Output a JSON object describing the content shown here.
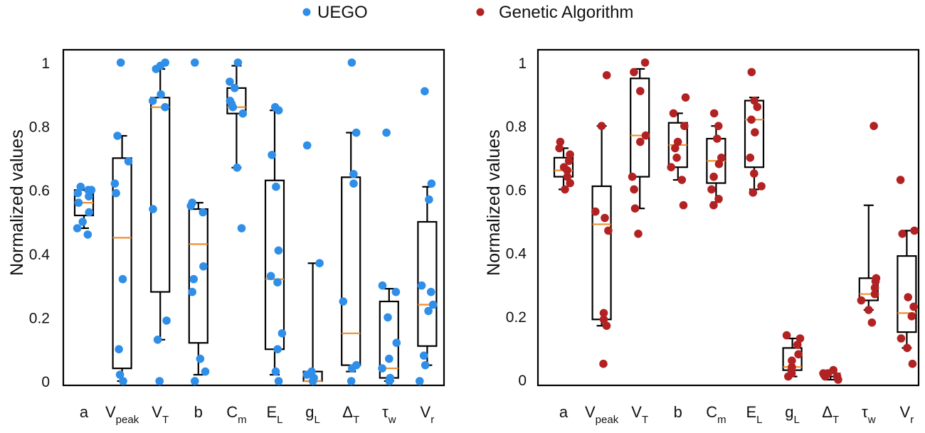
{
  "legend": [
    {
      "label": "UEGO",
      "color": "#2e8ee8"
    },
    {
      "label": "Genetic Algorithm",
      "color": "#b22222"
    }
  ],
  "chart_data": [
    {
      "type": "box",
      "series_name": "UEGO",
      "point_color": "#2e8ee8",
      "median_color": "#f28e2b",
      "ylabel": "Normalized values",
      "ylim": [
        0,
        1
      ],
      "yticks": [
        {
          "v": 0,
          "label": "0"
        },
        {
          "v": 0.2,
          "label": "0.2"
        },
        {
          "v": 0.4,
          "label": "0.4"
        },
        {
          "v": 0.6,
          "label": "0.6"
        },
        {
          "v": 0.8,
          "label": "0.8"
        },
        {
          "v": 1,
          "label": "1"
        }
      ],
      "categories": [
        {
          "main": "a",
          "sub": ""
        },
        {
          "main": "V",
          "sub": "peak"
        },
        {
          "main": "V",
          "sub": "T"
        },
        {
          "main": "b",
          "sub": ""
        },
        {
          "main": "C",
          "sub": "m"
        },
        {
          "main": "E",
          "sub": "L"
        },
        {
          "main": "g",
          "sub": "L"
        },
        {
          "main": "Δ",
          "sub": "T"
        },
        {
          "main": "τ",
          "sub": "w"
        },
        {
          "main": "V",
          "sub": "r"
        }
      ],
      "boxes": [
        {
          "q1": 0.52,
          "median": 0.56,
          "q3": 0.6,
          "wlo": 0.48,
          "whi": 0.6,
          "points": [
            0.46,
            0.48,
            0.5,
            0.53,
            0.56,
            0.58,
            0.59,
            0.6,
            0.61,
            0.6
          ]
        },
        {
          "q1": 0.04,
          "median": 0.45,
          "q3": 0.7,
          "wlo": 0.0,
          "whi": 0.77,
          "points": [
            0.0,
            0.02,
            0.1,
            0.32,
            0.59,
            0.62,
            0.69,
            0.77,
            1.0
          ]
        },
        {
          "q1": 0.28,
          "median": 0.86,
          "q3": 0.89,
          "wlo": 0.13,
          "whi": 0.98,
          "points": [
            0.0,
            0.13,
            0.19,
            0.54,
            0.86,
            0.88,
            0.9,
            0.98,
            0.99,
            1.0
          ]
        },
        {
          "q1": 0.12,
          "median": 0.43,
          "q3": 0.54,
          "wlo": 0.02,
          "whi": 0.56,
          "points": [
            0.0,
            0.03,
            0.07,
            0.28,
            0.32,
            0.36,
            0.53,
            0.55,
            0.56,
            1.0
          ]
        },
        {
          "q1": 0.84,
          "median": 0.86,
          "q3": 0.92,
          "wlo": 0.67,
          "whi": 0.99,
          "points": [
            0.48,
            0.67,
            0.84,
            0.86,
            0.87,
            0.88,
            0.92,
            0.94,
            1.0
          ]
        },
        {
          "q1": 0.1,
          "median": 0.32,
          "q3": 0.63,
          "wlo": 0.02,
          "whi": 0.85,
          "points": [
            0.0,
            0.03,
            0.1,
            0.15,
            0.31,
            0.33,
            0.41,
            0.61,
            0.71,
            0.85,
            0.86
          ]
        },
        {
          "q1": 0.0,
          "median": 0.0,
          "q3": 0.03,
          "wlo": 0.0,
          "whi": 0.37,
          "points": [
            0.0,
            0.01,
            0.02,
            0.03,
            0.37,
            0.74
          ]
        },
        {
          "q1": 0.05,
          "median": 0.15,
          "q3": 0.64,
          "wlo": 0.03,
          "whi": 0.78,
          "points": [
            0.0,
            0.04,
            0.05,
            0.25,
            0.62,
            0.65,
            0.78,
            1.0
          ]
        },
        {
          "q1": 0.01,
          "median": 0.04,
          "q3": 0.25,
          "wlo": 0.0,
          "whi": 0.29,
          "points": [
            0.0,
            0.01,
            0.04,
            0.07,
            0.12,
            0.2,
            0.28,
            0.3,
            0.78
          ]
        },
        {
          "q1": 0.11,
          "median": 0.24,
          "q3": 0.5,
          "wlo": 0.05,
          "whi": 0.61,
          "points": [
            0.0,
            0.05,
            0.08,
            0.22,
            0.24,
            0.28,
            0.3,
            0.57,
            0.62,
            0.91
          ]
        }
      ]
    },
    {
      "type": "box",
      "series_name": "Genetic Algorithm",
      "point_color": "#b22222",
      "median_color": "#f28e2b",
      "ylabel": "Normalized values",
      "ylim": [
        0,
        1
      ],
      "yticks": [
        {
          "v": 0,
          "label": "0"
        },
        {
          "v": 0.2,
          "label": "0.2"
        },
        {
          "v": 0.4,
          "label": "0.4"
        },
        {
          "v": 0.6,
          "label": "0.6"
        },
        {
          "v": 0.8,
          "label": "0.8"
        },
        {
          "v": 1,
          "label": "1"
        }
      ],
      "categories": [
        {
          "main": "a",
          "sub": ""
        },
        {
          "main": "V",
          "sub": "peak"
        },
        {
          "main": "V",
          "sub": "T"
        },
        {
          "main": "b",
          "sub": ""
        },
        {
          "main": "C",
          "sub": "m"
        },
        {
          "main": "E",
          "sub": "L"
        },
        {
          "main": "g",
          "sub": "L"
        },
        {
          "main": "Δ",
          "sub": "T"
        },
        {
          "main": "τ",
          "sub": "w"
        },
        {
          "main": "V",
          "sub": "r"
        }
      ],
      "boxes": [
        {
          "q1": 0.64,
          "median": 0.66,
          "q3": 0.7,
          "wlo": 0.6,
          "whi": 0.73,
          "points": [
            0.6,
            0.62,
            0.64,
            0.66,
            0.67,
            0.69,
            0.71,
            0.73,
            0.75
          ]
        },
        {
          "q1": 0.19,
          "median": 0.49,
          "q3": 0.61,
          "wlo": 0.17,
          "whi": 0.8,
          "points": [
            0.05,
            0.17,
            0.19,
            0.21,
            0.47,
            0.51,
            0.53,
            0.8,
            0.96
          ]
        },
        {
          "q1": 0.64,
          "median": 0.77,
          "q3": 0.95,
          "wlo": 0.54,
          "whi": 0.98,
          "points": [
            0.46,
            0.54,
            0.6,
            0.64,
            0.75,
            0.77,
            0.91,
            0.97,
            1.0
          ]
        },
        {
          "q1": 0.67,
          "median": 0.74,
          "q3": 0.81,
          "wlo": 0.63,
          "whi": 0.84,
          "points": [
            0.55,
            0.63,
            0.67,
            0.7,
            0.73,
            0.75,
            0.8,
            0.84,
            0.89
          ]
        },
        {
          "q1": 0.62,
          "median": 0.69,
          "q3": 0.76,
          "wlo": 0.56,
          "whi": 0.8,
          "points": [
            0.55,
            0.57,
            0.6,
            0.64,
            0.68,
            0.7,
            0.76,
            0.8,
            0.84
          ]
        },
        {
          "q1": 0.67,
          "median": 0.82,
          "q3": 0.88,
          "wlo": 0.6,
          "whi": 0.89,
          "points": [
            0.59,
            0.61,
            0.65,
            0.7,
            0.78,
            0.82,
            0.86,
            0.88,
            0.97
          ]
        },
        {
          "q1": 0.03,
          "median": 0.04,
          "q3": 0.1,
          "wlo": 0.01,
          "whi": 0.13,
          "points": [
            0.01,
            0.02,
            0.03,
            0.04,
            0.06,
            0.08,
            0.11,
            0.13,
            0.14
          ]
        },
        {
          "q1": 0.01,
          "median": 0.02,
          "q3": 0.02,
          "wlo": 0.0,
          "whi": 0.02,
          "points": [
            0.0,
            0.01,
            0.01,
            0.02,
            0.02,
            0.03
          ]
        },
        {
          "q1": 0.25,
          "median": 0.27,
          "q3": 0.32,
          "wlo": 0.22,
          "whi": 0.55,
          "points": [
            0.18,
            0.22,
            0.25,
            0.27,
            0.29,
            0.31,
            0.32,
            0.8
          ]
        },
        {
          "q1": 0.15,
          "median": 0.21,
          "q3": 0.39,
          "wlo": 0.1,
          "whi": 0.47,
          "points": [
            0.05,
            0.1,
            0.13,
            0.2,
            0.23,
            0.26,
            0.46,
            0.47,
            0.63
          ]
        }
      ]
    }
  ]
}
